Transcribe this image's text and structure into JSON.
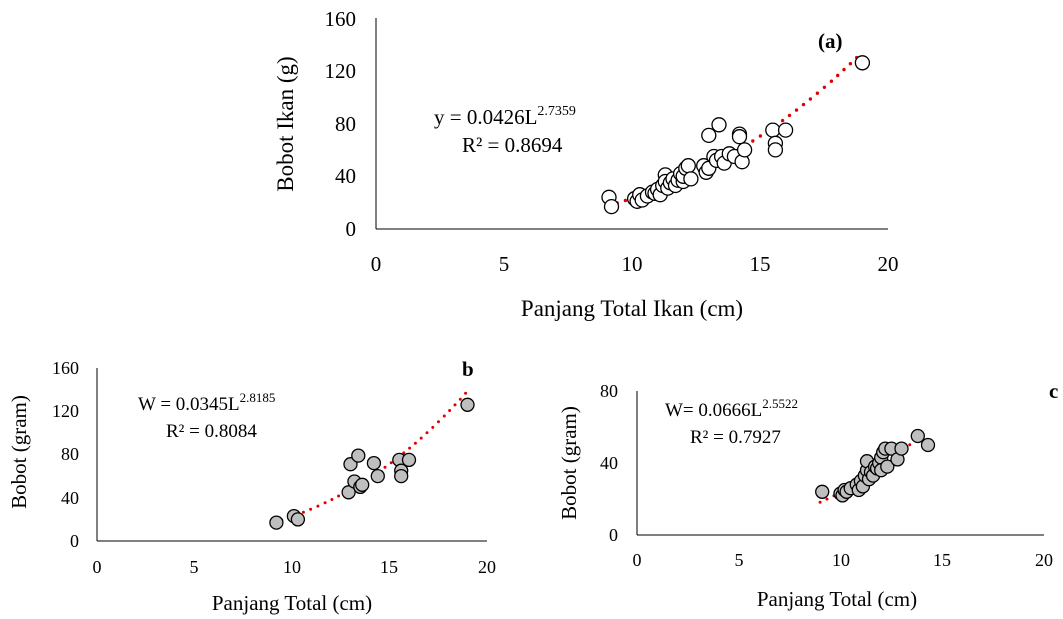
{
  "chart_data": [
    {
      "panel": "(a)",
      "type": "scatter",
      "xlabel": "Panjang Total Ikan (cm)",
      "ylabel": "Bobot Ikan (g)",
      "xlim": [
        0,
        20
      ],
      "ylim": [
        0,
        160
      ],
      "xticks": [
        0,
        5,
        10,
        15,
        20
      ],
      "yticks": [
        0,
        40,
        80,
        120,
        160
      ],
      "equation": {
        "prefix": "y = 0.0426L",
        "exponent": "2.7359",
        "r2": "R² = 0.8694"
      },
      "trendline": {
        "a": 0.0426,
        "b": 2.7359,
        "x_range": [
          9.1,
          19.0
        ],
        "color": "#e00000",
        "style": "dotted"
      },
      "marker": {
        "fill": "#ffffff",
        "stroke": "#000000"
      },
      "points": [
        [
          9.1,
          24
        ],
        [
          9.2,
          17
        ],
        [
          10.1,
          23
        ],
        [
          10.2,
          21
        ],
        [
          10.3,
          26
        ],
        [
          10.4,
          22
        ],
        [
          10.6,
          25
        ],
        [
          10.8,
          28
        ],
        [
          10.9,
          27
        ],
        [
          11.0,
          30
        ],
        [
          11.1,
          26
        ],
        [
          11.2,
          33
        ],
        [
          11.3,
          41
        ],
        [
          11.3,
          36
        ],
        [
          11.4,
          31
        ],
        [
          11.5,
          35
        ],
        [
          11.6,
          38
        ],
        [
          11.7,
          33
        ],
        [
          11.8,
          37
        ],
        [
          11.9,
          42
        ],
        [
          12.0,
          36
        ],
        [
          12.0,
          40
        ],
        [
          12.1,
          46
        ],
        [
          12.2,
          48
        ],
        [
          12.3,
          38
        ],
        [
          12.8,
          48
        ],
        [
          12.9,
          43
        ],
        [
          13.0,
          71
        ],
        [
          13.0,
          46
        ],
        [
          13.2,
          55
        ],
        [
          13.3,
          52
        ],
        [
          13.4,
          79
        ],
        [
          13.5,
          55
        ],
        [
          13.6,
          50
        ],
        [
          13.8,
          57
        ],
        [
          14.0,
          55
        ],
        [
          14.2,
          72
        ],
        [
          14.2,
          70
        ],
        [
          14.3,
          51
        ],
        [
          14.4,
          60
        ],
        [
          15.5,
          75
        ],
        [
          15.6,
          65
        ],
        [
          15.6,
          60
        ],
        [
          16.0,
          75
        ],
        [
          19.0,
          126
        ]
      ]
    },
    {
      "panel": "b",
      "type": "scatter",
      "xlabel": "Panjang Total (cm)",
      "ylabel": "Bobot (gram)",
      "xlim": [
        0,
        20
      ],
      "ylim": [
        0,
        160
      ],
      "xticks": [
        0,
        5,
        10,
        15,
        20
      ],
      "yticks": [
        0,
        40,
        80,
        120,
        160
      ],
      "equation": {
        "prefix": "W = 0.0345L",
        "exponent": "2.8185",
        "r2": "R² = 0.8084"
      },
      "trendline": {
        "a": 0.0345,
        "b": 2.8185,
        "x_range": [
          9.1,
          19.0
        ],
        "color": "#e00000",
        "style": "dotted"
      },
      "marker": {
        "fill": "#bfbfbf",
        "stroke": "#000000"
      },
      "points": [
        [
          9.2,
          17
        ],
        [
          10.1,
          23
        ],
        [
          10.3,
          20
        ],
        [
          12.9,
          45
        ],
        [
          13.0,
          71
        ],
        [
          13.2,
          55
        ],
        [
          13.4,
          79
        ],
        [
          13.5,
          50
        ],
        [
          13.6,
          52
        ],
        [
          14.2,
          72
        ],
        [
          14.4,
          60
        ],
        [
          15.5,
          75
        ],
        [
          15.6,
          65
        ],
        [
          15.6,
          60
        ],
        [
          16.0,
          75
        ],
        [
          19.0,
          126
        ]
      ]
    },
    {
      "panel": "c",
      "type": "scatter",
      "xlabel": "Panjang Total (cm)",
      "ylabel": "Bobot (gram)",
      "xlim": [
        0,
        20
      ],
      "ylim": [
        0,
        80
      ],
      "xticks": [
        0,
        5,
        10,
        15,
        20
      ],
      "yticks": [
        0,
        40,
        80
      ],
      "equation": {
        "prefix": "W= 0.0666L",
        "exponent": "2.5522",
        "r2": "R² = 0.7927"
      },
      "trendline": {
        "a": 0.0666,
        "b": 2.5522,
        "x_range": [
          9.0,
          14.0
        ],
        "color": "#e00000",
        "style": "dotted"
      },
      "marker": {
        "fill": "#bfbfbf",
        "stroke": "#000000"
      },
      "points": [
        [
          9.1,
          24
        ],
        [
          10.0,
          23
        ],
        [
          10.1,
          22
        ],
        [
          10.2,
          25
        ],
        [
          10.3,
          24
        ],
        [
          10.5,
          26
        ],
        [
          10.8,
          28
        ],
        [
          10.9,
          25
        ],
        [
          11.0,
          30
        ],
        [
          11.1,
          27
        ],
        [
          11.2,
          33
        ],
        [
          11.3,
          36
        ],
        [
          11.3,
          41
        ],
        [
          11.4,
          31
        ],
        [
          11.5,
          35
        ],
        [
          11.6,
          33
        ],
        [
          11.7,
          38
        ],
        [
          11.8,
          37
        ],
        [
          11.9,
          40
        ],
        [
          12.0,
          43
        ],
        [
          12.0,
          36
        ],
        [
          12.1,
          46
        ],
        [
          12.2,
          48
        ],
        [
          12.3,
          38
        ],
        [
          12.5,
          48
        ],
        [
          12.8,
          42
        ],
        [
          13.0,
          48
        ],
        [
          13.8,
          55
        ],
        [
          14.3,
          50
        ]
      ]
    }
  ]
}
